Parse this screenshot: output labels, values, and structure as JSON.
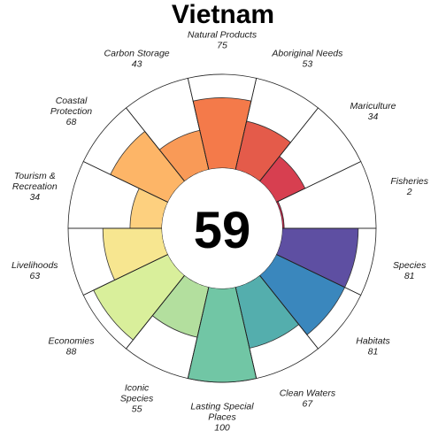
{
  "chart_data": {
    "type": "flower",
    "title": "Vietnam",
    "overall_score": "59",
    "max_score": 100,
    "petals": [
      {
        "name": [
          "Natural Products"
        ],
        "value": 75,
        "color": "#F47A4A"
      },
      {
        "name": [
          "Aboriginal Needs"
        ],
        "value": 53,
        "color": "#E45B4A"
      },
      {
        "name": [
          "Mariculture"
        ],
        "value": 34,
        "color": "#D73F50"
      },
      {
        "name": [
          "Fisheries"
        ],
        "value": 2,
        "color": "#C2284A"
      },
      {
        "name": [
          "Species"
        ],
        "value": 81,
        "color": "#5E4FA2"
      },
      {
        "name": [
          "Habitats"
        ],
        "value": 81,
        "color": "#3A87BD"
      },
      {
        "name": [
          "Clean Waters"
        ],
        "value": 67,
        "color": "#54AEAD"
      },
      {
        "name": [
          "Lasting Special",
          "Places"
        ],
        "value": 100,
        "color": "#71C6A5"
      },
      {
        "name": [
          "Iconic",
          "Species"
        ],
        "value": 55,
        "color": "#B3DF9E"
      },
      {
        "name": [
          "Economies"
        ],
        "value": 88,
        "color": "#D9EF9B"
      },
      {
        "name": [
          "Livelihoods"
        ],
        "value": 63,
        "color": "#F7E690"
      },
      {
        "name": [
          "Tourism &",
          "Recreation"
        ],
        "value": 34,
        "color": "#FDD07F"
      },
      {
        "name": [
          "Coastal",
          "Protection"
        ],
        "value": 68,
        "color": "#FDB567"
      },
      {
        "name": [
          "Carbon Storage"
        ],
        "value": 43,
        "color": "#F99A57"
      }
    ]
  }
}
